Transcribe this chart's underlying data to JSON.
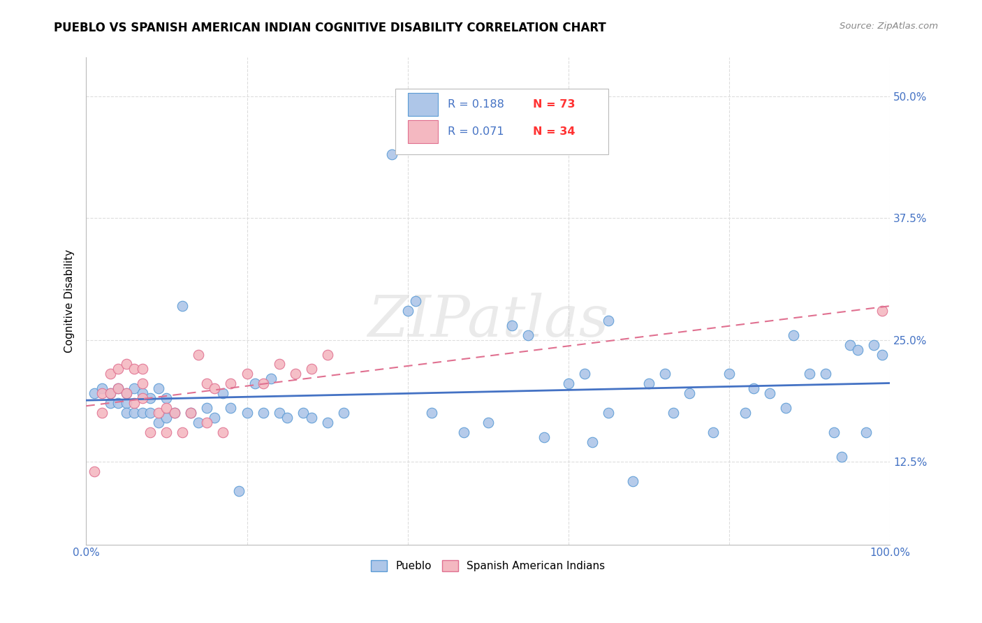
{
  "title": "PUEBLO VS SPANISH AMERICAN INDIAN COGNITIVE DISABILITY CORRELATION CHART",
  "source": "Source: ZipAtlas.com",
  "xlabel": "",
  "ylabel": "Cognitive Disability",
  "xlim": [
    0.0,
    1.0
  ],
  "ylim": [
    0.04,
    0.54
  ],
  "x_ticks": [
    0.0,
    0.2,
    0.4,
    0.6,
    0.8,
    1.0
  ],
  "x_tick_labels": [
    "0.0%",
    "",
    "",
    "",
    "",
    "100.0%"
  ],
  "y_tick_labels": [
    "12.5%",
    "25.0%",
    "37.5%",
    "50.0%"
  ],
  "y_ticks": [
    0.125,
    0.25,
    0.375,
    0.5
  ],
  "background_color": "#ffffff",
  "grid_color": "#dddddd",
  "pueblo_color": "#aec6e8",
  "pueblo_edge_color": "#5b9bd5",
  "sai_color": "#f4b8c1",
  "sai_edge_color": "#e07090",
  "pueblo_R": 0.188,
  "pueblo_N": 73,
  "sai_R": 0.071,
  "sai_N": 34,
  "pueblo_line_color": "#4472c4",
  "sai_line_color": "#e07090",
  "watermark": "ZIPatlas",
  "legend_R_color": "#4472c4",
  "legend_N_color": "#ff0000",
  "pueblo_x": [
    0.01,
    0.02,
    0.03,
    0.03,
    0.04,
    0.04,
    0.05,
    0.05,
    0.05,
    0.06,
    0.06,
    0.07,
    0.07,
    0.08,
    0.08,
    0.09,
    0.09,
    0.1,
    0.1,
    0.11,
    0.12,
    0.13,
    0.14,
    0.15,
    0.16,
    0.17,
    0.18,
    0.19,
    0.2,
    0.21,
    0.22,
    0.23,
    0.24,
    0.25,
    0.27,
    0.28,
    0.3,
    0.32,
    0.38,
    0.4,
    0.41,
    0.43,
    0.47,
    0.5,
    0.53,
    0.55,
    0.57,
    0.6,
    0.62,
    0.63,
    0.65,
    0.65,
    0.68,
    0.7,
    0.72,
    0.73,
    0.75,
    0.78,
    0.8,
    0.82,
    0.83,
    0.85,
    0.87,
    0.88,
    0.9,
    0.92,
    0.93,
    0.94,
    0.95,
    0.96,
    0.97,
    0.98,
    0.99
  ],
  "pueblo_y": [
    0.195,
    0.2,
    0.195,
    0.185,
    0.2,
    0.185,
    0.195,
    0.185,
    0.175,
    0.2,
    0.175,
    0.195,
    0.175,
    0.19,
    0.175,
    0.2,
    0.165,
    0.19,
    0.17,
    0.175,
    0.285,
    0.175,
    0.165,
    0.18,
    0.17,
    0.195,
    0.18,
    0.095,
    0.175,
    0.205,
    0.175,
    0.21,
    0.175,
    0.17,
    0.175,
    0.17,
    0.165,
    0.175,
    0.44,
    0.28,
    0.29,
    0.175,
    0.155,
    0.165,
    0.265,
    0.255,
    0.15,
    0.205,
    0.215,
    0.145,
    0.27,
    0.175,
    0.105,
    0.205,
    0.215,
    0.175,
    0.195,
    0.155,
    0.215,
    0.175,
    0.2,
    0.195,
    0.18,
    0.255,
    0.215,
    0.215,
    0.155,
    0.13,
    0.245,
    0.24,
    0.155,
    0.245,
    0.235
  ],
  "sai_x": [
    0.01,
    0.02,
    0.02,
    0.03,
    0.03,
    0.04,
    0.04,
    0.05,
    0.05,
    0.06,
    0.06,
    0.07,
    0.07,
    0.07,
    0.08,
    0.09,
    0.1,
    0.1,
    0.11,
    0.12,
    0.13,
    0.14,
    0.15,
    0.15,
    0.16,
    0.17,
    0.18,
    0.2,
    0.22,
    0.24,
    0.26,
    0.28,
    0.3,
    0.99
  ],
  "sai_y": [
    0.115,
    0.195,
    0.175,
    0.215,
    0.195,
    0.22,
    0.2,
    0.225,
    0.195,
    0.22,
    0.185,
    0.22,
    0.205,
    0.19,
    0.155,
    0.175,
    0.18,
    0.155,
    0.175,
    0.155,
    0.175,
    0.235,
    0.165,
    0.205,
    0.2,
    0.155,
    0.205,
    0.215,
    0.205,
    0.225,
    0.215,
    0.22,
    0.235,
    0.28
  ]
}
